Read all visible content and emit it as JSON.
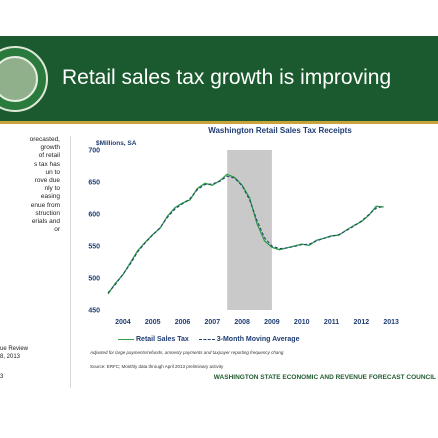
{
  "slide": {
    "title": "Retail sales tax growth is improving",
    "side_text": "orecasted,\ngrowth\nof retail\ns tax has\nun to\nrove due\nnly to\neasing\nenue from\nstruction\nerials and\nor",
    "side_text_2": "ue Review\n8, 2013",
    "side_text_3": "3",
    "footer": "WASHINGTON STATE ECONOMIC AND REVENUE FORECAST COUNCIL",
    "colors": {
      "header": "#1b5a2e",
      "accent": "#c8a33a",
      "series_line": "#2e9e47",
      "moving_average": "#1f3d73",
      "recession_shade": "#c9c9c9"
    }
  },
  "chart_data": {
    "type": "line",
    "title": "Washington Retail Sales Tax Receipts",
    "ylabel": "$Millions, SA",
    "xlabel": "",
    "ylim": [
      450,
      700
    ],
    "yticks": [
      450,
      500,
      550,
      600,
      650,
      700
    ],
    "xlim": [
      2004,
      2014.2
    ],
    "xticks": [
      "2004",
      "2005",
      "2006",
      "2007",
      "2008",
      "2009",
      "2010",
      "2011",
      "2012",
      "2013"
    ],
    "shaded_region": [
      2008.0,
      2009.5
    ],
    "legend": {
      "placement": "bottom",
      "entries": [
        "Retail Sales Tax",
        "3-Month Moving Average"
      ]
    },
    "note": "Adjusted for large payments/refunds, amnesty payments and taxpayer reporting frequency chang",
    "source": "Source: ERFC; Monthly data through April 2013 preliminary activity",
    "series": [
      {
        "name": "Retail Sales Tax",
        "x": [
          2004.0,
          2004.25,
          2004.5,
          2004.75,
          2005.0,
          2005.25,
          2005.5,
          2005.75,
          2006.0,
          2006.25,
          2006.5,
          2006.75,
          2007.0,
          2007.25,
          2007.5,
          2007.75,
          2008.0,
          2008.25,
          2008.5,
          2008.75,
          2009.0,
          2009.25,
          2009.5,
          2009.75,
          2010.0,
          2010.25,
          2010.5,
          2010.75,
          2011.0,
          2011.25,
          2011.5,
          2011.75,
          2012.0,
          2012.25,
          2012.5,
          2012.75,
          2013.0,
          2013.25
        ],
        "values": [
          475,
          492,
          505,
          524,
          543,
          556,
          568,
          578,
          597,
          610,
          617,
          622,
          640,
          648,
          645,
          652,
          662,
          657,
          645,
          625,
          585,
          558,
          548,
          544,
          547,
          550,
          553,
          551,
          559,
          562,
          566,
          567,
          575,
          582,
          588,
          598,
          612,
          611
        ]
      },
      {
        "name": "3-Month Moving Average",
        "x": [
          2004.0,
          2004.25,
          2004.5,
          2004.75,
          2005.0,
          2005.25,
          2005.5,
          2005.75,
          2006.0,
          2006.25,
          2006.5,
          2006.75,
          2007.0,
          2007.25,
          2007.5,
          2007.75,
          2008.0,
          2008.25,
          2008.5,
          2008.75,
          2009.0,
          2009.25,
          2009.5,
          2009.75,
          2010.0,
          2010.25,
          2010.5,
          2010.75,
          2011.0,
          2011.25,
          2011.5,
          2011.75,
          2012.0,
          2012.25,
          2012.5,
          2012.75,
          2013.0,
          2013.25
        ],
        "values": [
          477,
          490,
          506,
          522,
          541,
          555,
          567,
          579,
          595,
          608,
          616,
          624,
          638,
          646,
          647,
          651,
          659,
          656,
          644,
          622,
          590,
          563,
          550,
          546,
          547,
          549,
          552,
          553,
          558,
          562,
          565,
          568,
          574,
          581,
          589,
          599,
          609,
          612
        ]
      }
    ]
  }
}
